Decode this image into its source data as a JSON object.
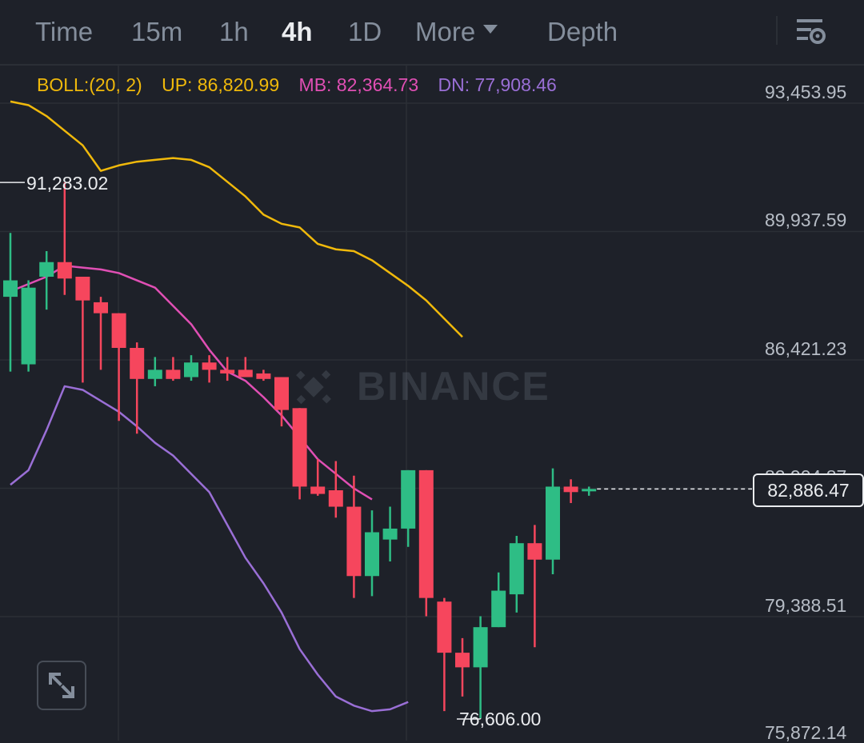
{
  "toolbar": {
    "tabs": [
      {
        "label": "Time",
        "active": false
      },
      {
        "label": "15m",
        "active": false
      },
      {
        "label": "1h",
        "active": false
      },
      {
        "label": "4h",
        "active": true
      },
      {
        "label": "1D",
        "active": false
      },
      {
        "label": "More",
        "active": false
      },
      {
        "label": "Depth",
        "active": false
      }
    ],
    "settings_icon": "chart-settings-icon"
  },
  "indicator": {
    "name": "BOLL:(20, 2)",
    "up": "UP: 86,820.99",
    "mb": "MB: 82,364.73",
    "dn": "DN: 77,908.46",
    "colors": {
      "name": "#f0b90b",
      "up": "#f0b90b",
      "mb": "#e04fb4",
      "dn": "#9a6fd6"
    }
  },
  "y_axis": {
    "labels": [
      "93,453.95",
      "89,937.59",
      "86,421.23",
      "82,904.87",
      "79,388.51",
      "75,872.14"
    ]
  },
  "current_price": "82,886.47",
  "annotations": {
    "high": "91,283.02",
    "low": "76,606.00"
  },
  "watermark": "BINANCE",
  "expand_icon": "expand-arrows-icon",
  "colors": {
    "bg": "#1e2129",
    "up": "#2ebd85",
    "down": "#f6465d",
    "grid": "#2b2f36",
    "text": "#848e9c"
  },
  "chart_data": {
    "type": "candlestick",
    "interval": "4h",
    "y_labels": [
      93453.95,
      89937.59,
      86421.23,
      82904.87,
      79388.51,
      75872.14
    ],
    "current_price": 82886.47,
    "high_marker": 91283.02,
    "low_marker": 76606.0,
    "candles": [
      {
        "o": 88150,
        "h": 89900,
        "l": 86100,
        "c": 88600
      },
      {
        "o": 86300,
        "h": 88600,
        "l": 86100,
        "c": 88400
      },
      {
        "o": 88700,
        "h": 89400,
        "l": 87800,
        "c": 89100
      },
      {
        "o": 89100,
        "h": 91283.02,
        "l": 88200,
        "c": 88650
      },
      {
        "o": 88700,
        "h": 88700,
        "l": 85800,
        "c": 88050
      },
      {
        "o": 88000,
        "h": 88150,
        "l": 86150,
        "c": 87700
      },
      {
        "o": 87700,
        "h": 87700,
        "l": 84750,
        "c": 86750
      },
      {
        "o": 86750,
        "h": 86900,
        "l": 84400,
        "c": 85900
      },
      {
        "o": 85900,
        "h": 86500,
        "l": 85700,
        "c": 86150
      },
      {
        "o": 86150,
        "h": 86500,
        "l": 85850,
        "c": 85900
      },
      {
        "o": 85950,
        "h": 86550,
        "l": 85850,
        "c": 86350
      },
      {
        "o": 86350,
        "h": 86550,
        "l": 85800,
        "c": 86150
      },
      {
        "o": 86150,
        "h": 86500,
        "l": 85850,
        "c": 86050
      },
      {
        "o": 86150,
        "h": 86500,
        "l": 85950,
        "c": 85950
      },
      {
        "o": 86050,
        "h": 86150,
        "l": 85850,
        "c": 85900
      },
      {
        "o": 85950,
        "h": 85950,
        "l": 84600,
        "c": 85050
      },
      {
        "o": 85100,
        "h": 85100,
        "l": 82600,
        "c": 82950
      },
      {
        "o": 82950,
        "h": 83700,
        "l": 82700,
        "c": 82750
      },
      {
        "o": 82850,
        "h": 83650,
        "l": 82100,
        "c": 82400
      },
      {
        "o": 82400,
        "h": 83250,
        "l": 79900,
        "c": 80500
      },
      {
        "o": 80500,
        "h": 82300,
        "l": 79950,
        "c": 81700
      },
      {
        "o": 81500,
        "h": 82400,
        "l": 80900,
        "c": 81800
      },
      {
        "o": 81800,
        "h": 83400,
        "l": 81300,
        "c": 83400
      },
      {
        "o": 83400,
        "h": 83400,
        "l": 79400,
        "c": 79900
      },
      {
        "o": 79800,
        "h": 79900,
        "l": 76800,
        "c": 78400
      },
      {
        "o": 78400,
        "h": 78800,
        "l": 77200,
        "c": 78000
      },
      {
        "o": 78000,
        "h": 79400,
        "l": 76606.0,
        "c": 79100
      },
      {
        "o": 79100,
        "h": 80600,
        "l": 79100,
        "c": 80100
      },
      {
        "o": 80000,
        "h": 81600,
        "l": 79500,
        "c": 81400
      },
      {
        "o": 81400,
        "h": 81900,
        "l": 78550,
        "c": 80950
      },
      {
        "o": 80950,
        "h": 83450,
        "l": 80550,
        "c": 82950
      },
      {
        "o": 82950,
        "h": 83150,
        "l": 82500,
        "c": 82800
      },
      {
        "o": 82850,
        "h": 82950,
        "l": 82700,
        "c": 82886.47
      }
    ],
    "boll_up": [
      93500,
      93400,
      93100,
      92700,
      92300,
      91600,
      91750,
      91850,
      91900,
      91950,
      91900,
      91700,
      91300,
      90900,
      90400,
      90150,
      90050,
      89600,
      89450,
      89400,
      89150,
      88800,
      88450,
      88050,
      87550,
      87050
    ],
    "boll_mb": [
      88300,
      88500,
      88700,
      89000,
      88950,
      88900,
      88800,
      88600,
      88400,
      87900,
      87400,
      86700,
      86100,
      85850,
      85400,
      84900,
      84300,
      83700,
      83300,
      82900,
      82600
    ],
    "boll_dn": [
      83000,
      83400,
      84500,
      85700,
      85600,
      85300,
      85000,
      84600,
      84150,
      83800,
      83300,
      82800,
      81900,
      81000,
      80300,
      79500,
      78500,
      77800,
      77200,
      76950,
      76800,
      76850,
      77050
    ]
  }
}
